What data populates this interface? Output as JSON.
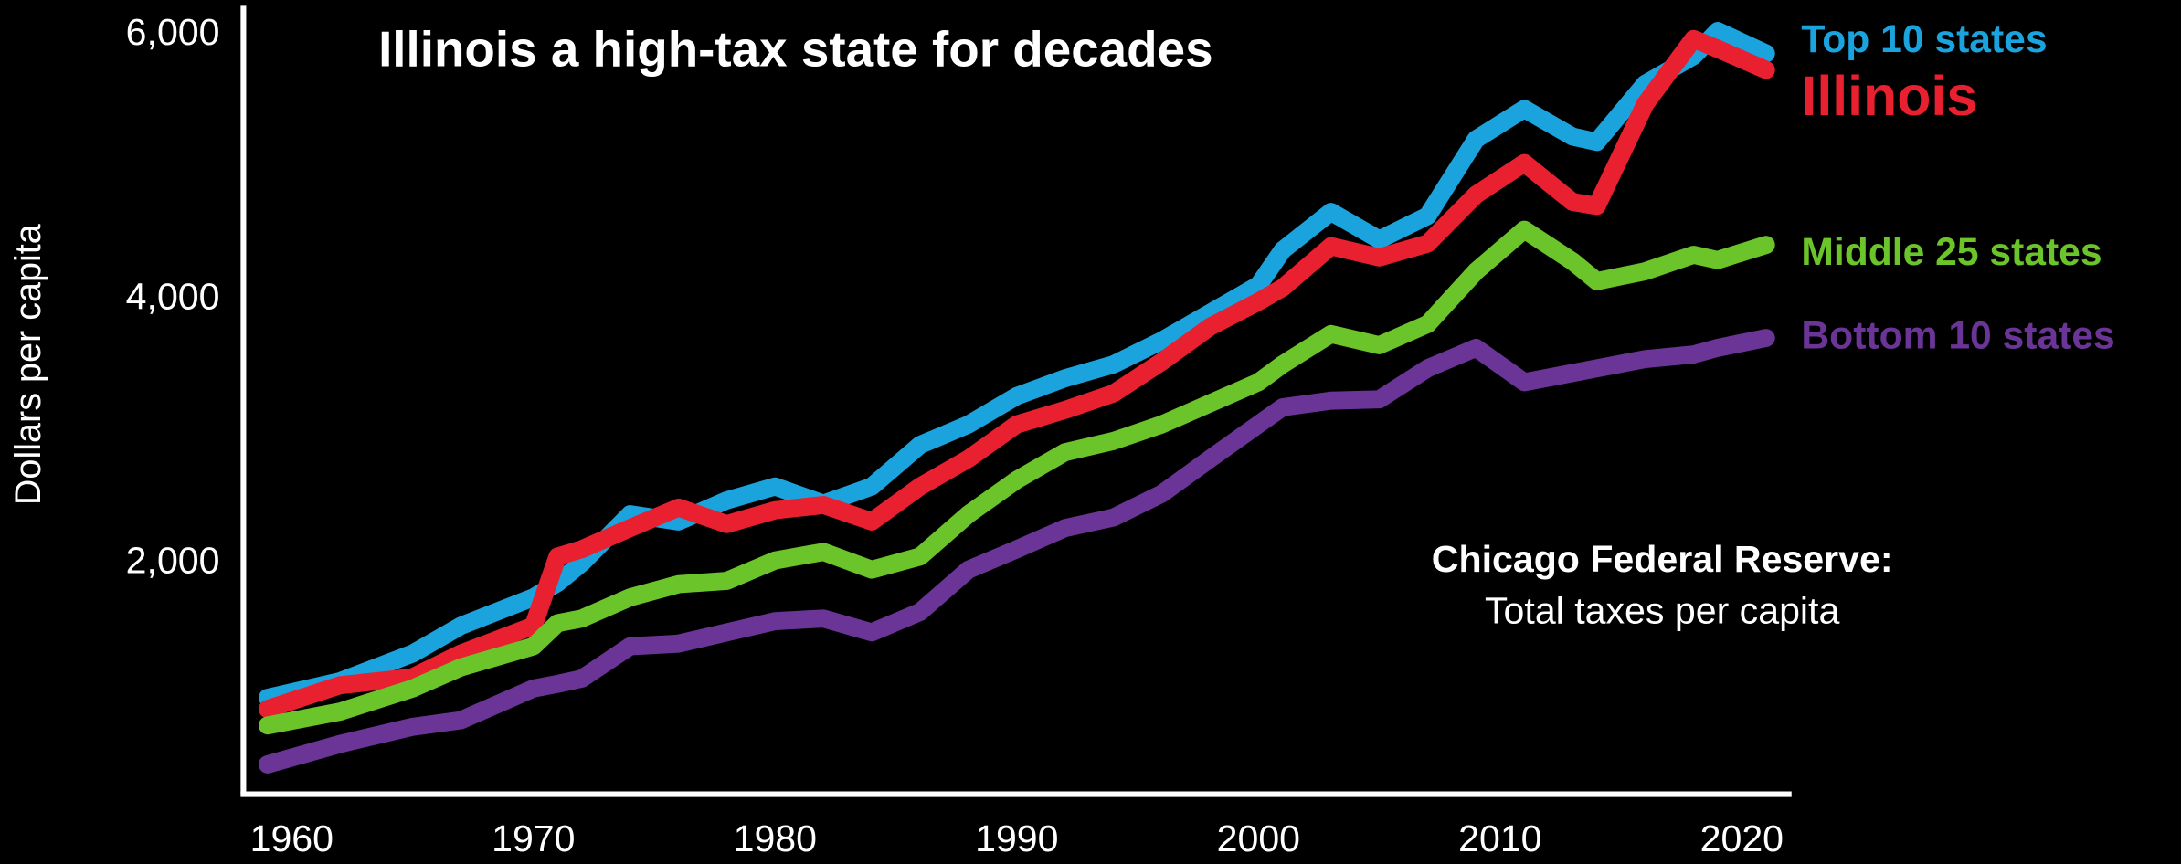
{
  "chart_data": {
    "type": "line",
    "title": "Illinois a high-tax state for decades",
    "y_label": "Dollars per capita",
    "annotation": {
      "source": "Chicago Federal Reserve:",
      "text": "Total taxes per capita"
    },
    "x": [
      1959,
      1962,
      1965,
      1967,
      1970,
      1971,
      1972,
      1974,
      1976,
      1978,
      1980,
      1982,
      1984,
      1986,
      1988,
      1990,
      1992,
      1994,
      1996,
      1998,
      2000,
      2001,
      2003,
      2005,
      2007,
      2009,
      2011,
      2013,
      2014,
      2016,
      2018,
      2019,
      2021
    ],
    "series": [
      {
        "name": "Top 10 states",
        "color": "#1ba3dd",
        "values": [
          980,
          1105,
          1315,
          1525,
          1740,
          1850,
          2000,
          2370,
          2315,
          2475,
          2580,
          2450,
          2580,
          2895,
          3050,
          3265,
          3400,
          3505,
          3685,
          3895,
          4105,
          4370,
          4660,
          4450,
          4630,
          5210,
          5440,
          5230,
          5190,
          5630,
          5840,
          6030,
          5860
        ]
      },
      {
        "name": "Illinois",
        "color": "#e8202f",
        "values": [
          895,
          1075,
          1135,
          1315,
          1525,
          2050,
          2105,
          2265,
          2420,
          2295,
          2400,
          2440,
          2315,
          2580,
          2790,
          3050,
          3160,
          3285,
          3525,
          3790,
          3980,
          4085,
          4400,
          4315,
          4420,
          4790,
          5030,
          4735,
          4705,
          5475,
          5970,
          5895,
          5735
        ]
      },
      {
        "name": "Middle 25 states",
        "color": "#6ac42a",
        "values": [
          770,
          875,
          1050,
          1210,
          1370,
          1545,
          1580,
          1740,
          1840,
          1865,
          2020,
          2085,
          1950,
          2050,
          2370,
          2630,
          2840,
          2925,
          3050,
          3210,
          3370,
          3505,
          3735,
          3650,
          3810,
          4210,
          4525,
          4285,
          4135,
          4210,
          4335,
          4295,
          4410
        ]
      },
      {
        "name": "Bottom 10 states",
        "color": "#6a3596",
        "values": [
          475,
          630,
          760,
          810,
          1050,
          1085,
          1125,
          1370,
          1390,
          1475,
          1560,
          1580,
          1475,
          1630,
          1950,
          2105,
          2265,
          2345,
          2525,
          2790,
          3050,
          3180,
          3230,
          3240,
          3475,
          3630,
          3370,
          3440,
          3475,
          3545,
          3580,
          3630,
          3705
        ]
      }
    ],
    "xlim": [
      1958,
      2022
    ],
    "xticks": [
      1960,
      1970,
      1980,
      1990,
      2000,
      2010,
      2020
    ],
    "ylim": [
      260,
      6210
    ],
    "yticks": [
      {
        "value": 2000,
        "label": "2,000"
      },
      {
        "value": 4000,
        "label": "4,000"
      },
      {
        "value": 6000,
        "label": "6,000"
      }
    ],
    "grid": false
  }
}
